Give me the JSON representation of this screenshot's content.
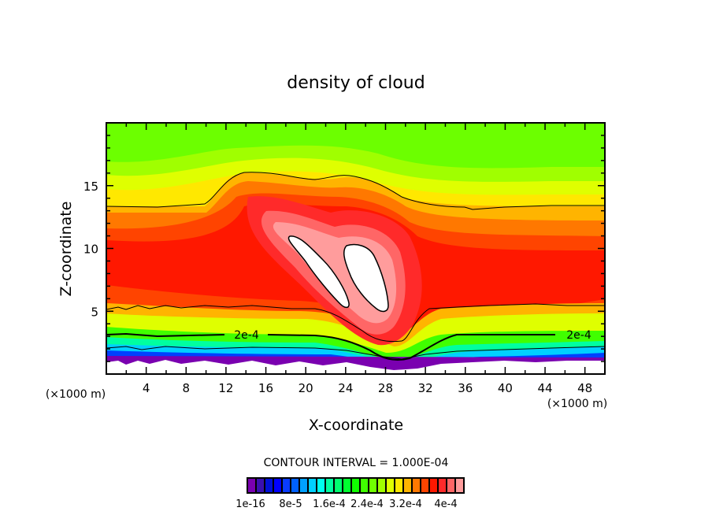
{
  "chart_data": {
    "type": "heatmap",
    "title": "density of cloud",
    "xlabel": "X-coordinate",
    "ylabel": "Z-coordinate",
    "x_unit_left": "(×1000 m)",
    "x_unit_right": "(×1000 m)",
    "xlim": [
      0,
      50
    ],
    "ylim": [
      0,
      20
    ],
    "x_ticks": [
      4,
      8,
      12,
      16,
      20,
      24,
      28,
      32,
      36,
      40,
      44,
      48
    ],
    "y_ticks": [
      5,
      10,
      15
    ],
    "contour_interval_label": "CONTOUR INTERVAL = 1.000E-04",
    "contour_line_label": "2e-4",
    "colorbar": {
      "labels": [
        "1e-16",
        "8e-5",
        "1.6e-4",
        "2.4e-4",
        "3.2e-4",
        "4e-4"
      ],
      "colors": [
        "#7a00b0",
        "#3a10b0",
        "#0010d8",
        "#0000ff",
        "#0a3cff",
        "#0060ff",
        "#00a0ff",
        "#00d0ff",
        "#00ffee",
        "#00ffa0",
        "#00ff70",
        "#00ff30",
        "#10ff00",
        "#40ff00",
        "#70ff00",
        "#a0ff00",
        "#dfff00",
        "#ffe800",
        "#ffb400",
        "#ff7800",
        "#ff4400",
        "#ff1800",
        "#ff2a2a",
        "#ff6666",
        "#ff9c9c"
      ]
    }
  }
}
